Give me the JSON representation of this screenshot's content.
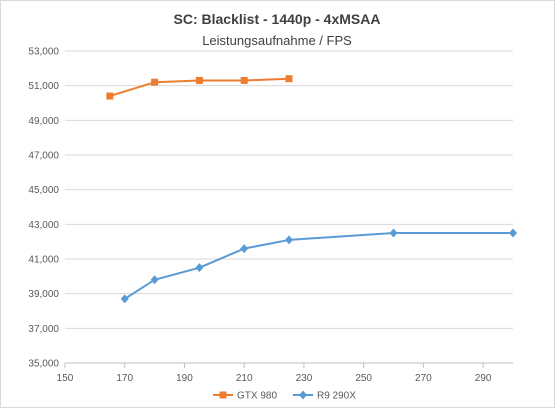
{
  "chart_data": {
    "type": "line",
    "title": "SC: Blacklist - 1440p - 4xMSAA",
    "subtitle": "Leistungsaufnahme / FPS",
    "xlabel": "",
    "ylabel": "",
    "xlim": [
      150,
      300
    ],
    "ylim": [
      35,
      53
    ],
    "x_ticks": [
      150,
      170,
      190,
      210,
      230,
      250,
      270,
      290
    ],
    "y_ticks": [
      35,
      37,
      39,
      41,
      43,
      45,
      47,
      49,
      51,
      53
    ],
    "y_tick_labels": [
      "35,000",
      "37,000",
      "39,000",
      "41,000",
      "43,000",
      "45,000",
      "47,000",
      "49,000",
      "51,000",
      "53,000"
    ],
    "grid": "horizontal",
    "legend_position": "bottom",
    "series": [
      {
        "name": "GTX 980",
        "color": "#ed7d31",
        "marker": "square",
        "points": [
          {
            "x": 165,
            "y": 50.4
          },
          {
            "x": 180,
            "y": 51.2
          },
          {
            "x": 195,
            "y": 51.3
          },
          {
            "x": 210,
            "y": 51.3
          },
          {
            "x": 225,
            "y": 51.4
          }
        ]
      },
      {
        "name": "R9 290X",
        "color": "#5b9bd5",
        "marker": "diamond",
        "points": [
          {
            "x": 170,
            "y": 38.7
          },
          {
            "x": 180,
            "y": 39.8
          },
          {
            "x": 195,
            "y": 40.5
          },
          {
            "x": 210,
            "y": 41.6
          },
          {
            "x": 225,
            "y": 42.1
          },
          {
            "x": 260,
            "y": 42.5
          },
          {
            "x": 300,
            "y": 42.5
          }
        ]
      }
    ]
  },
  "style": {
    "gridline_color": "#d9d9d9",
    "axis_color": "#bfbfbf",
    "title_color": "#404040",
    "tick_color": "#595959"
  }
}
